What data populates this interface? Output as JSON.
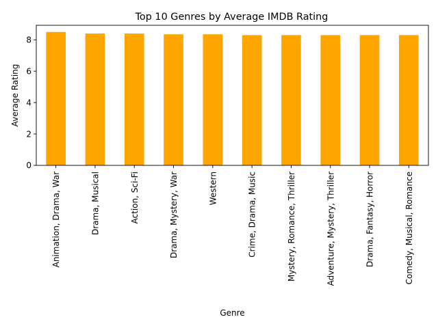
{
  "chart_data": {
    "type": "bar",
    "title": "Top 10 Genres by Average IMDB Rating",
    "xlabel": "Genre",
    "ylabel": "Average Rating",
    "categories": [
      "Animation, Drama, War",
      "Drama, Musical",
      "Action, Sci-Fi",
      "Drama, Mystery, War",
      "Western",
      "Crime, Drama, Music",
      "Mystery, Romance, Thriller",
      "Adventure, Mystery, Thriller",
      "Drama, Fantasy, Horror",
      "Comedy, Musical, Romance"
    ],
    "values": [
      8.5,
      8.4,
      8.4,
      8.35,
      8.35,
      8.3,
      8.3,
      8.3,
      8.3,
      8.3
    ],
    "ylim": [
      0,
      8.925
    ],
    "yticks": [
      0,
      2,
      4,
      6,
      8
    ],
    "bar_color": "#ffa500",
    "grid": false,
    "legend": "none"
  }
}
